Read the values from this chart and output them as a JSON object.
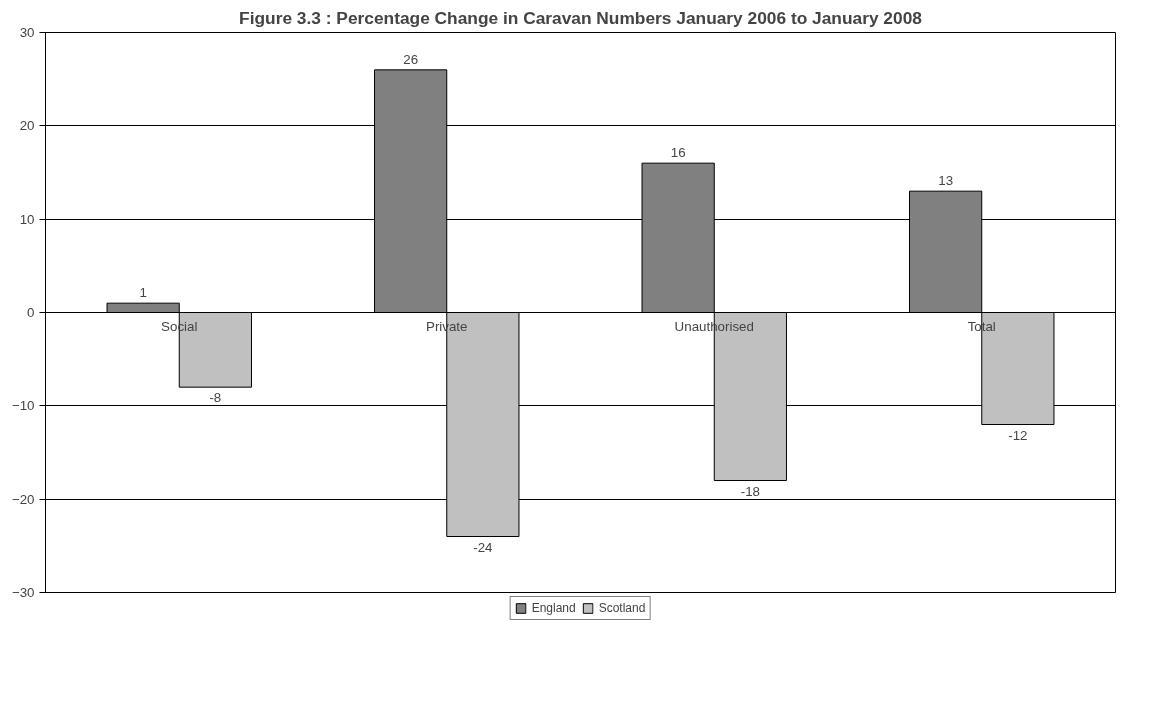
{
  "chart_data": {
    "type": "bar",
    "title": "Figure 3.3 : Percentage Change in Caravan Numbers January 2006 to January 2008",
    "categories": [
      "Social",
      "Private",
      "Unauthorised",
      "Total"
    ],
    "series": [
      {
        "name": "England",
        "color": "#808080",
        "values": [
          1,
          26,
          16,
          13
        ]
      },
      {
        "name": "Scotland",
        "color": "#c0c0c0",
        "values": [
          -8,
          -24,
          -18,
          -12
        ]
      }
    ],
    "ylim": [
      -30,
      30
    ],
    "yticks": [
      -30,
      -20,
      -10,
      0,
      10,
      20,
      30
    ],
    "grid": "y",
    "legend": "bottom",
    "data_labels": true
  }
}
